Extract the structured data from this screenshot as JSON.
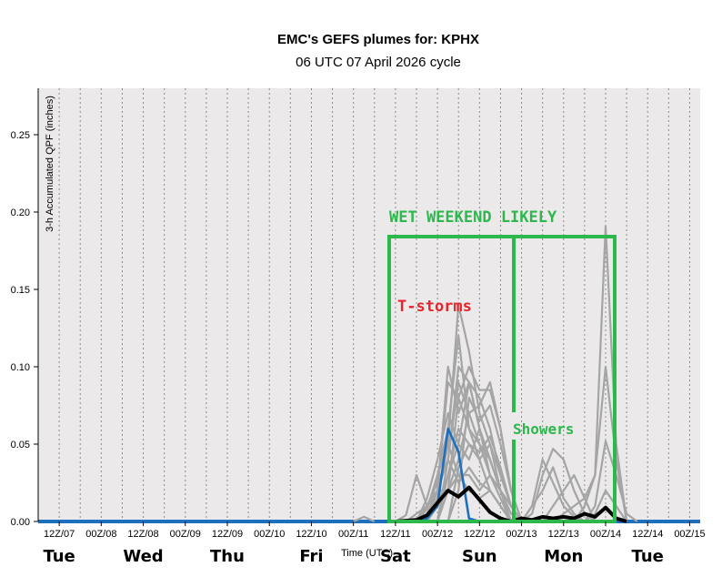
{
  "chart_data": {
    "type": "line",
    "title": "EMC's GEFS plumes for: KPHX",
    "subtitle": "06 UTC 07 April 2026 cycle",
    "ylabel": "3-h Accumulated QPF (inches)",
    "xlabel": "Time (UTC)",
    "ylim": [
      0,
      0.28
    ],
    "yticks": [
      0.0,
      0.05,
      0.1,
      0.15,
      0.2,
      0.25
    ],
    "ytick_labels": [
      "0.00",
      "0.05",
      "0.10",
      "0.15",
      "0.20",
      "0.25"
    ],
    "x_range": [
      0,
      63
    ],
    "xtick_labels": [
      "12Z/07",
      "00Z/08",
      "12Z/08",
      "00Z/09",
      "12Z/09",
      "00Z/10",
      "12Z/10",
      "00Z/11",
      "12Z/11",
      "00Z/12",
      "12Z/12",
      "00Z/13",
      "12Z/13",
      "00Z/14",
      "12Z/14",
      "00Z/15"
    ],
    "xtick_steps": [
      2,
      6,
      10,
      14,
      18,
      22,
      26,
      30,
      34,
      38,
      42,
      46,
      50,
      54,
      58,
      62
    ],
    "day_labels": [
      {
        "label": "Tue",
        "step": 2
      },
      {
        "label": "Wed",
        "step": 10
      },
      {
        "label": "Thu",
        "step": 18
      },
      {
        "label": "Fri",
        "step": 26
      },
      {
        "label": "Sat",
        "step": 34
      },
      {
        "label": "Sun",
        "step": 42
      },
      {
        "label": "Mon",
        "step": 50
      },
      {
        "label": "Tue",
        "step": 58
      }
    ],
    "grid": true,
    "colors": {
      "plot_bg": "#ebe9e9",
      "members": "#a5a5a5",
      "mean": "#000000",
      "control": "#1e6fbd",
      "zero_line": "#1e6fbd",
      "annotation_green": "#2db84e",
      "annotation_red": "#e8242b"
    },
    "series": [
      {
        "role": "member",
        "points": [
          [
            30,
            0
          ],
          [
            31,
            0.003
          ],
          [
            32,
            0
          ]
        ]
      },
      {
        "role": "member",
        "points": [
          [
            34,
            0
          ],
          [
            35,
            0.004
          ],
          [
            36,
            0.03
          ],
          [
            37,
            0.01
          ],
          [
            38,
            0.02
          ],
          [
            39,
            0.02
          ],
          [
            40,
            0.08
          ],
          [
            41,
            0.06
          ],
          [
            42,
            0.05
          ],
          [
            43,
            0.03
          ],
          [
            44,
            0.02
          ],
          [
            45,
            0.005
          ],
          [
            46,
            0
          ]
        ]
      },
      {
        "role": "member",
        "points": [
          [
            35,
            0
          ],
          [
            36,
            0.005
          ],
          [
            37,
            0.01
          ],
          [
            38,
            0.025
          ],
          [
            39,
            0.04
          ],
          [
            40,
            0.1
          ],
          [
            41,
            0.09
          ],
          [
            42,
            0.06
          ],
          [
            43,
            0.04
          ],
          [
            44,
            0.02
          ],
          [
            45,
            0.01
          ],
          [
            46,
            0
          ]
        ]
      },
      {
        "role": "member",
        "points": [
          [
            36,
            0
          ],
          [
            37,
            0.008
          ],
          [
            38,
            0.03
          ],
          [
            39,
            0.05
          ],
          [
            40,
            0.14
          ],
          [
            41,
            0.11
          ],
          [
            42,
            0.07
          ],
          [
            43,
            0.05
          ],
          [
            44,
            0.02
          ],
          [
            45,
            0.01
          ],
          [
            46,
            0
          ]
        ]
      },
      {
        "role": "member",
        "points": [
          [
            36,
            0
          ],
          [
            37,
            0.01
          ],
          [
            38,
            0.02
          ],
          [
            39,
            0.09
          ],
          [
            40,
            0.08
          ],
          [
            41,
            0.1
          ],
          [
            42,
            0.085
          ],
          [
            43,
            0.085
          ],
          [
            44,
            0.06
          ],
          [
            45,
            0.02
          ],
          [
            46,
            0
          ]
        ]
      },
      {
        "role": "member",
        "points": [
          [
            37,
            0
          ],
          [
            38,
            0.02
          ],
          [
            39,
            0.1
          ],
          [
            40,
            0.07
          ],
          [
            41,
            0.09
          ],
          [
            42,
            0.08
          ],
          [
            43,
            0.06
          ],
          [
            44,
            0.03
          ],
          [
            45,
            0.01
          ],
          [
            46,
            0
          ]
        ]
      },
      {
        "role": "member",
        "points": [
          [
            37,
            0
          ],
          [
            38,
            0.03
          ],
          [
            39,
            0.06
          ],
          [
            40,
            0.12
          ],
          [
            41,
            0.06
          ],
          [
            42,
            0.04
          ],
          [
            43,
            0.02
          ],
          [
            44,
            0.01
          ],
          [
            45,
            0
          ]
        ]
      },
      {
        "role": "member",
        "points": [
          [
            36,
            0
          ],
          [
            37,
            0.015
          ],
          [
            38,
            0.04
          ],
          [
            39,
            0.07
          ],
          [
            40,
            0.05
          ],
          [
            41,
            0.09
          ],
          [
            42,
            0.06
          ],
          [
            43,
            0.03
          ],
          [
            44,
            0.015
          ],
          [
            45,
            0
          ]
        ]
      },
      {
        "role": "member",
        "points": [
          [
            38,
            0
          ],
          [
            39,
            0.02
          ],
          [
            40,
            0.04
          ],
          [
            41,
            0.07
          ],
          [
            42,
            0.075
          ],
          [
            43,
            0.09
          ],
          [
            44,
            0.06
          ],
          [
            45,
            0.02
          ],
          [
            46,
            0
          ]
        ]
      },
      {
        "role": "member",
        "points": [
          [
            37,
            0
          ],
          [
            38,
            0.01
          ],
          [
            39,
            0.03
          ],
          [
            40,
            0.05
          ],
          [
            41,
            0.04
          ],
          [
            42,
            0.06
          ],
          [
            43,
            0.04
          ],
          [
            44,
            0.02
          ],
          [
            45,
            0
          ]
        ]
      },
      {
        "role": "member",
        "points": [
          [
            38,
            0
          ],
          [
            39,
            0.03
          ],
          [
            40,
            0.06
          ],
          [
            41,
            0.05
          ],
          [
            42,
            0.04
          ],
          [
            43,
            0.05
          ],
          [
            44,
            0.03
          ],
          [
            45,
            0.01
          ],
          [
            46,
            0
          ]
        ]
      },
      {
        "role": "member",
        "points": [
          [
            37,
            0
          ],
          [
            38,
            0.015
          ],
          [
            39,
            0.05
          ],
          [
            40,
            0.03
          ],
          [
            41,
            0.03
          ],
          [
            42,
            0.02
          ],
          [
            43,
            0.03
          ],
          [
            44,
            0.02
          ],
          [
            45,
            0
          ]
        ]
      },
      {
        "role": "member",
        "points": [
          [
            39,
            0
          ],
          [
            40,
            0.02
          ],
          [
            41,
            0.08
          ],
          [
            42,
            0.065
          ],
          [
            43,
            0.075
          ],
          [
            44,
            0.05
          ],
          [
            45,
            0.02
          ],
          [
            46,
            0
          ]
        ]
      },
      {
        "role": "member",
        "points": [
          [
            36,
            0
          ],
          [
            37,
            0.005
          ],
          [
            38,
            0.02
          ],
          [
            39,
            0.04
          ],
          [
            40,
            0.025
          ],
          [
            41,
            0.035
          ],
          [
            42,
            0.025
          ],
          [
            43,
            0.02
          ],
          [
            44,
            0.01
          ],
          [
            45,
            0
          ]
        ]
      },
      {
        "role": "member",
        "points": [
          [
            38,
            0
          ],
          [
            39,
            0.04
          ],
          [
            40,
            0.09
          ],
          [
            41,
            0.07
          ],
          [
            42,
            0.05
          ],
          [
            43,
            0.04
          ],
          [
            44,
            0.02
          ],
          [
            45,
            0
          ]
        ]
      },
      {
        "role": "member",
        "points": [
          [
            39,
            0
          ],
          [
            40,
            0.035
          ],
          [
            41,
            0.05
          ],
          [
            42,
            0.045
          ],
          [
            43,
            0.055
          ],
          [
            44,
            0.035
          ],
          [
            45,
            0.01
          ],
          [
            46,
            0
          ]
        ]
      },
      {
        "role": "member",
        "points": [
          [
            37,
            0
          ],
          [
            38,
            0.01
          ],
          [
            39,
            0.02
          ],
          [
            40,
            0.03
          ],
          [
            41,
            0.02
          ],
          [
            42,
            0.015
          ],
          [
            43,
            0.02
          ],
          [
            44,
            0.01
          ],
          [
            45,
            0
          ]
        ]
      },
      {
        "role": "member",
        "points": [
          [
            46,
            0
          ],
          [
            47,
            0.01
          ],
          [
            48,
            0.02
          ],
          [
            49,
            0.035
          ],
          [
            50,
            0.015
          ],
          [
            51,
            0.005
          ],
          [
            52,
            0
          ]
        ]
      },
      {
        "role": "member",
        "points": [
          [
            46,
            0
          ],
          [
            47,
            0.005
          ],
          [
            48,
            0.03
          ],
          [
            49,
            0.047
          ],
          [
            50,
            0.04
          ],
          [
            51,
            0.02
          ],
          [
            52,
            0.005
          ],
          [
            53,
            0
          ]
        ]
      },
      {
        "role": "member",
        "points": [
          [
            46,
            0
          ],
          [
            47,
            0.01
          ],
          [
            48,
            0.04
          ],
          [
            49,
            0.025
          ],
          [
            50,
            0.01
          ],
          [
            51,
            0.003
          ],
          [
            52,
            0
          ]
        ]
      },
      {
        "role": "member",
        "points": [
          [
            48,
            0
          ],
          [
            49,
            0.01
          ],
          [
            50,
            0.02
          ],
          [
            51,
            0.03
          ],
          [
            52,
            0.015
          ],
          [
            53,
            0
          ]
        ]
      },
      {
        "role": "member",
        "points": [
          [
            49,
            0
          ],
          [
            50,
            0.005
          ],
          [
            51,
            0.01
          ],
          [
            52,
            0.015
          ],
          [
            53,
            0.03
          ],
          [
            54,
            0.1
          ],
          [
            55,
            0.04
          ],
          [
            56,
            0
          ]
        ]
      },
      {
        "role": "member",
        "points": [
          [
            51,
            0
          ],
          [
            52,
            0.01
          ],
          [
            53,
            0.03
          ],
          [
            54,
            0.191
          ],
          [
            55,
            0.05
          ],
          [
            56,
            0
          ]
        ]
      },
      {
        "role": "member",
        "points": [
          [
            52,
            0
          ],
          [
            53,
            0.01
          ],
          [
            54,
            0.052
          ],
          [
            55,
            0.03
          ],
          [
            56,
            0.005
          ],
          [
            57,
            0
          ]
        ]
      },
      {
        "role": "member",
        "points": [
          [
            52,
            0
          ],
          [
            53,
            0.005
          ],
          [
            54,
            0.02
          ],
          [
            55,
            0.01
          ],
          [
            56,
            0
          ]
        ]
      },
      {
        "role": "mean",
        "points": [
          [
            34,
            0
          ],
          [
            36,
            0.001
          ],
          [
            37,
            0.004
          ],
          [
            38,
            0.012
          ],
          [
            39,
            0.02
          ],
          [
            40,
            0.016
          ],
          [
            41,
            0.022
          ],
          [
            42,
            0.014
          ],
          [
            43,
            0.006
          ],
          [
            44,
            0.002
          ],
          [
            45,
            0
          ],
          [
            46,
            0.002
          ],
          [
            47,
            0.001
          ],
          [
            48,
            0.003
          ],
          [
            49,
            0.002
          ],
          [
            50,
            0.003
          ],
          [
            51,
            0.002
          ],
          [
            52,
            0.005
          ],
          [
            53,
            0.003
          ],
          [
            54,
            0.009
          ],
          [
            55,
            0.002
          ],
          [
            56,
            0
          ]
        ]
      },
      {
        "role": "control",
        "points": [
          [
            36,
            0
          ],
          [
            37,
            0.002
          ],
          [
            38,
            0.01
          ],
          [
            39,
            0.06
          ],
          [
            40,
            0.045
          ],
          [
            41,
            0.002
          ],
          [
            42,
            0
          ]
        ]
      }
    ],
    "annotations": [
      {
        "text": "WET WEEKEND LIKELY",
        "color": "green"
      },
      {
        "text": "T-storms",
        "color": "red"
      },
      {
        "text": "Showers",
        "color": "green"
      }
    ]
  }
}
